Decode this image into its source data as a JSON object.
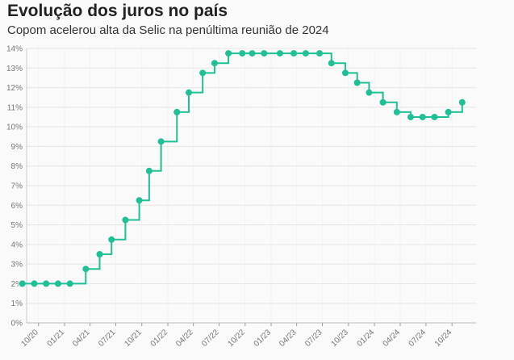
{
  "title": "Evolução dos juros no país",
  "subtitle": "Copom acelerou alta da Selic na penúltima reunião de 2024",
  "colors": {
    "line": "#20c096",
    "grid": "#e6e6e6",
    "axis_text": "#777777",
    "background": "#fafafa"
  },
  "chart_data": {
    "type": "line",
    "interpolation": "step-after",
    "title": "Evolução dos juros no país",
    "subtitle": "Copom acelerou alta da Selic na penúltima reunião de 2024",
    "xlabel": "",
    "ylabel": "",
    "ylim": [
      0,
      14
    ],
    "xlim": [
      "2020-08-20",
      "2024-12-25"
    ],
    "grid": true,
    "legend": "none",
    "y_ticks": [
      "0%",
      "1%",
      "2%",
      "3%",
      "4%",
      "5%",
      "6%",
      "7%",
      "8%",
      "9%",
      "10%",
      "11%",
      "12%",
      "13%",
      "14%"
    ],
    "x_ticks": [
      {
        "date": "2020-10-01",
        "label": "10/20"
      },
      {
        "date": "2021-01-01",
        "label": "01/21"
      },
      {
        "date": "2021-04-01",
        "label": "04/21"
      },
      {
        "date": "2021-07-01",
        "label": "07/21"
      },
      {
        "date": "2021-10-01",
        "label": "10/21"
      },
      {
        "date": "2022-01-01",
        "label": "01/22"
      },
      {
        "date": "2022-04-01",
        "label": "04/22"
      },
      {
        "date": "2022-07-01",
        "label": "07/22"
      },
      {
        "date": "2022-10-01",
        "label": "10/22"
      },
      {
        "date": "2023-01-01",
        "label": "01/23"
      },
      {
        "date": "2023-04-01",
        "label": "04/23"
      },
      {
        "date": "2023-07-01",
        "label": "07/23"
      },
      {
        "date": "2023-10-01",
        "label": "10/23"
      },
      {
        "date": "2024-01-01",
        "label": "01/24"
      },
      {
        "date": "2024-04-01",
        "label": "04/24"
      },
      {
        "date": "2024-07-01",
        "label": "07/24"
      },
      {
        "date": "2024-10-01",
        "label": "10/24"
      }
    ],
    "series": [
      {
        "points": [
          {
            "x": "2020-08-05",
            "y": 2.0
          },
          {
            "x": "2020-09-16",
            "y": 2.0
          },
          {
            "x": "2020-10-28",
            "y": 2.0
          },
          {
            "x": "2020-12-09",
            "y": 2.0
          },
          {
            "x": "2021-01-20",
            "y": 2.0
          },
          {
            "x": "2021-03-17",
            "y": 2.75
          },
          {
            "x": "2021-05-05",
            "y": 3.5
          },
          {
            "x": "2021-06-16",
            "y": 4.25
          },
          {
            "x": "2021-08-04",
            "y": 5.25
          },
          {
            "x": "2021-09-22",
            "y": 6.25
          },
          {
            "x": "2021-10-27",
            "y": 7.75
          },
          {
            "x": "2021-12-08",
            "y": 9.25
          },
          {
            "x": "2022-02-02",
            "y": 10.75
          },
          {
            "x": "2022-03-16",
            "y": 11.75
          },
          {
            "x": "2022-05-04",
            "y": 12.75
          },
          {
            "x": "2022-06-15",
            "y": 13.25
          },
          {
            "x": "2022-08-03",
            "y": 13.75
          },
          {
            "x": "2022-09-21",
            "y": 13.75
          },
          {
            "x": "2022-10-26",
            "y": 13.75
          },
          {
            "x": "2022-12-07",
            "y": 13.75
          },
          {
            "x": "2023-02-01",
            "y": 13.75
          },
          {
            "x": "2023-03-22",
            "y": 13.75
          },
          {
            "x": "2023-05-03",
            "y": 13.75
          },
          {
            "x": "2023-06-21",
            "y": 13.75
          },
          {
            "x": "2023-08-02",
            "y": 13.25
          },
          {
            "x": "2023-09-20",
            "y": 12.75
          },
          {
            "x": "2023-11-01",
            "y": 12.25
          },
          {
            "x": "2023-12-13",
            "y": 11.75
          },
          {
            "x": "2024-01-31",
            "y": 11.25
          },
          {
            "x": "2024-03-20",
            "y": 10.75
          },
          {
            "x": "2024-05-08",
            "y": 10.5
          },
          {
            "x": "2024-06-19",
            "y": 10.5
          },
          {
            "x": "2024-07-31",
            "y": 10.5
          },
          {
            "x": "2024-09-18",
            "y": 10.75
          },
          {
            "x": "2024-11-06",
            "y": 11.25
          }
        ]
      }
    ]
  }
}
